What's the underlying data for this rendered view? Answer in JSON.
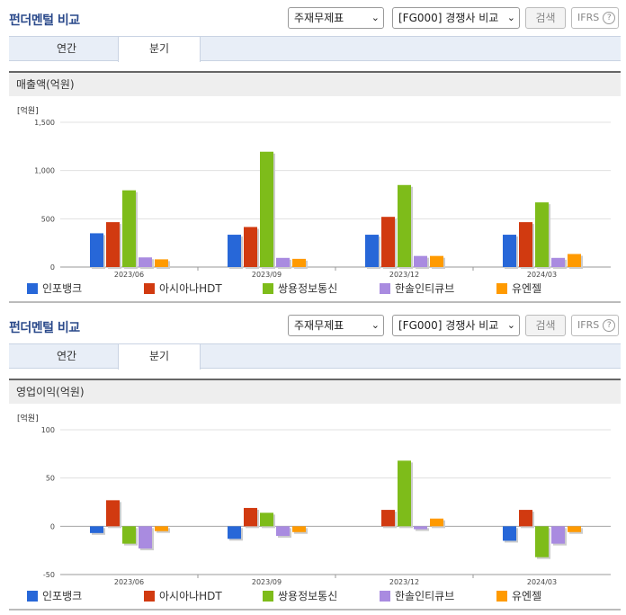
{
  "panels": [
    {
      "title": "펀더멘털 비교",
      "select1": "주재무제표",
      "select2": "[FG000] 경쟁사 비교",
      "search_button": "검색",
      "ifrs_label": "IFRS",
      "ifrs_help": "?",
      "tabs": [
        {
          "label": "연간"
        },
        {
          "label": "분기"
        }
      ],
      "active_tab": "분기",
      "chart_title": "매출액(억원)"
    },
    {
      "title": "펀더멘털 비교",
      "select1": "주재무제표",
      "select2": "[FG000] 경쟁사 비교",
      "search_button": "검색",
      "ifrs_label": "IFRS",
      "ifrs_help": "?",
      "tabs": [
        {
          "label": "연간"
        },
        {
          "label": "분기"
        }
      ],
      "active_tab": "분기",
      "chart_title": "영업이익(억원)"
    }
  ],
  "legend": [
    {
      "name": "인포뱅크",
      "color": "#2767d8"
    },
    {
      "name": "아시아나HDT",
      "color": "#d13a10"
    },
    {
      "name": "쌍용정보통신",
      "color": "#7ebc1a"
    },
    {
      "name": "한솔인티큐브",
      "color": "#a98be0"
    },
    {
      "name": "유엔젤",
      "color": "#ff9a00"
    }
  ],
  "chart_data": [
    {
      "type": "bar",
      "unit_label": "[억원]",
      "categories": [
        "2023/06",
        "2023/09",
        "2023/12",
        "2024/03"
      ],
      "ylim": [
        0,
        1500
      ],
      "yticks": [
        0,
        500,
        1000,
        1500
      ],
      "ytick_labels": [
        "0",
        "500",
        "1,000",
        "1,500"
      ],
      "series": [
        {
          "name": "인포뱅크",
          "values": [
            350,
            335,
            335,
            335
          ]
        },
        {
          "name": "아시아나HDT",
          "values": [
            465,
            415,
            520,
            465
          ]
        },
        {
          "name": "쌍용정보통신",
          "values": [
            795,
            1195,
            850,
            670
          ]
        },
        {
          "name": "한솔인티큐브",
          "values": [
            100,
            95,
            115,
            95
          ]
        },
        {
          "name": "유엔젤",
          "values": [
            80,
            85,
            115,
            135
          ]
        }
      ]
    },
    {
      "type": "bar",
      "unit_label": "[억원]",
      "categories": [
        "2023/06",
        "2023/09",
        "2023/12",
        "2024/03"
      ],
      "ylim": [
        -50,
        100
      ],
      "yticks": [
        -50,
        0,
        50,
        100
      ],
      "ytick_labels": [
        "-50",
        "0",
        "50",
        "100"
      ],
      "series": [
        {
          "name": "인포뱅크",
          "values": [
            -7,
            -13,
            0,
            -15
          ]
        },
        {
          "name": "아시아나HDT",
          "values": [
            27,
            19,
            17,
            17
          ]
        },
        {
          "name": "쌍용정보통신",
          "values": [
            -18,
            14,
            68,
            -32
          ]
        },
        {
          "name": "한솔인티큐브",
          "values": [
            -23,
            -10,
            -3,
            -18
          ]
        },
        {
          "name": "유엔젤",
          "values": [
            -5,
            -6,
            8,
            -6
          ]
        }
      ]
    }
  ]
}
